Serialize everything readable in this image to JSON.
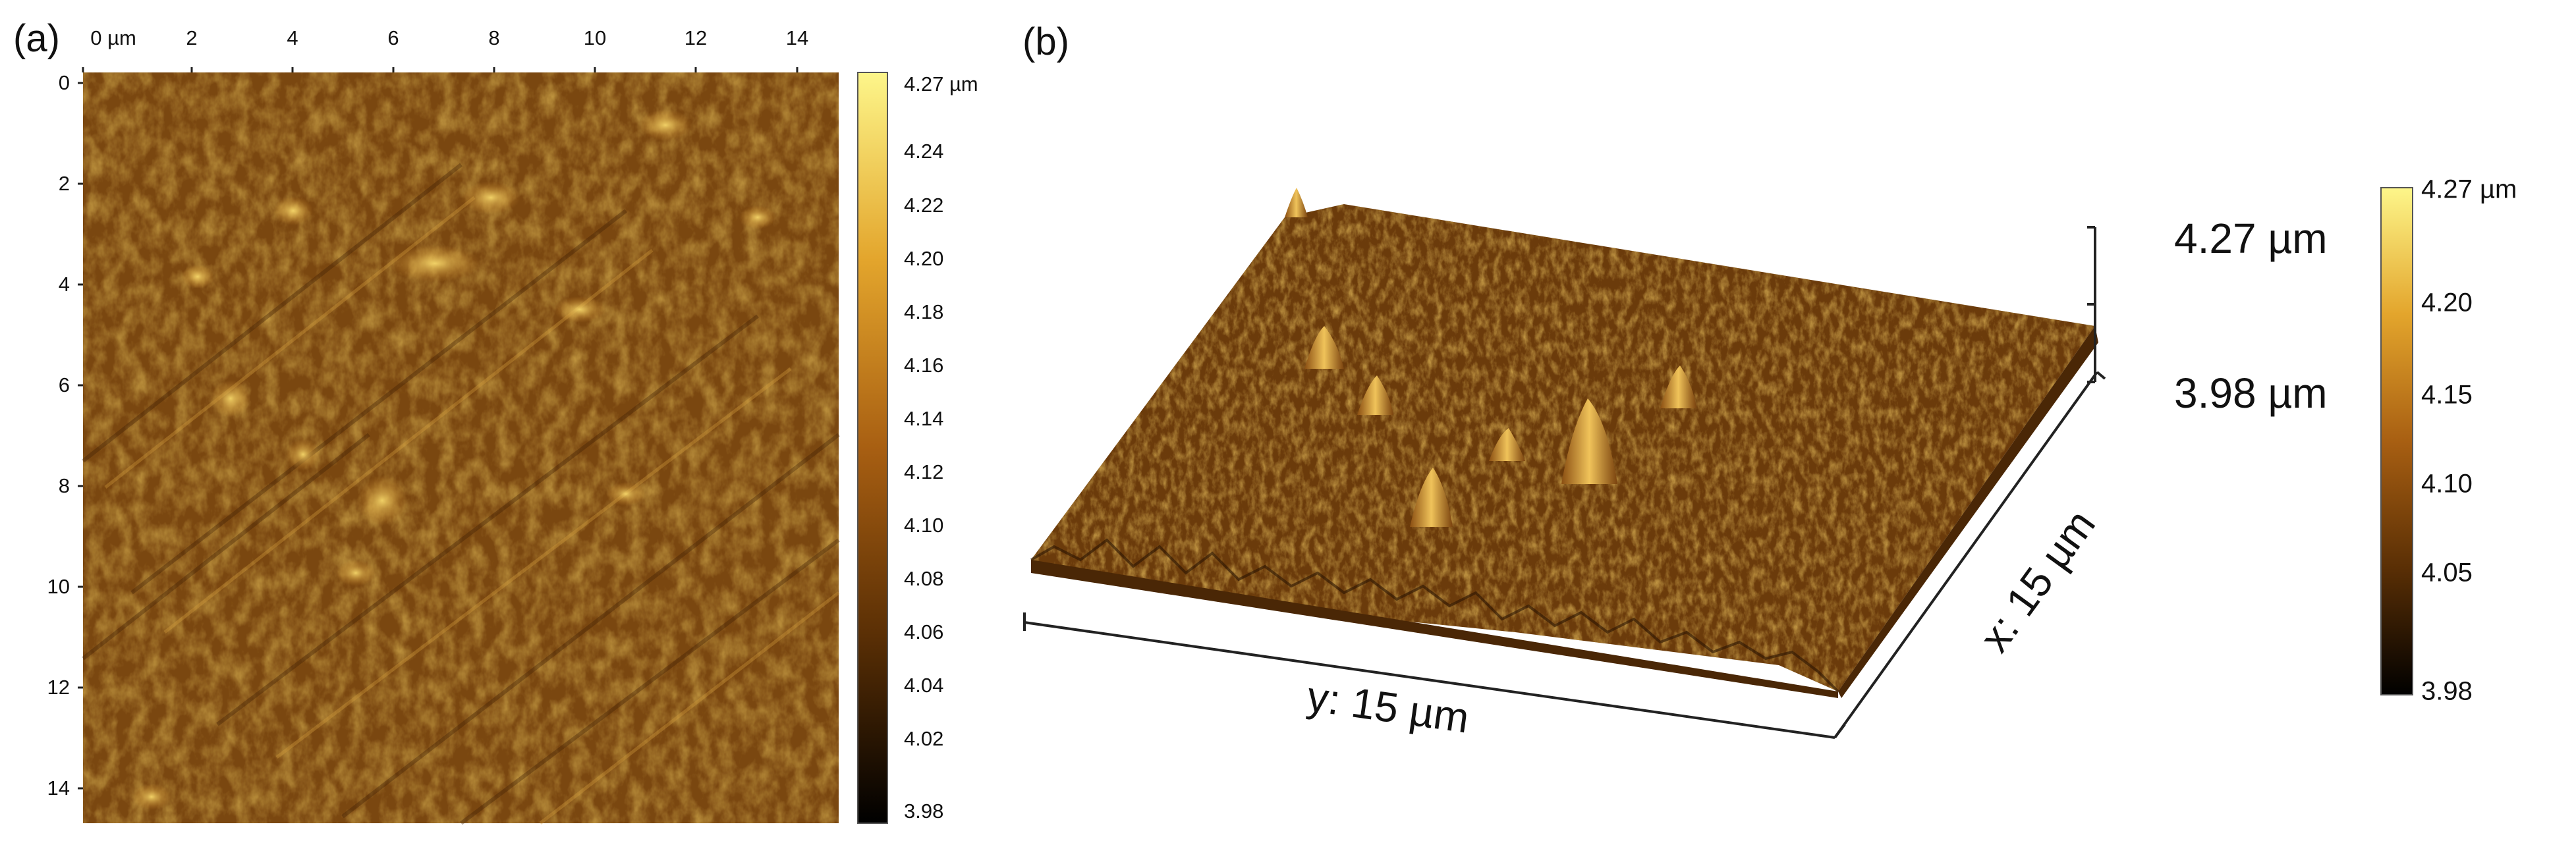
{
  "panel_a": {
    "label": "(a)",
    "x_ticks": [
      "0 µm",
      "2",
      "4",
      "6",
      "8",
      "10",
      "12",
      "14"
    ],
    "y_ticks": [
      "0",
      "2",
      "4",
      "6",
      "8",
      "10",
      "12",
      "14"
    ],
    "colorbar": {
      "ticks": [
        "4.27 µm",
        "4.24",
        "4.22",
        "4.20",
        "4.18",
        "4.16",
        "4.14",
        "4.12",
        "4.10",
        "4.08",
        "4.06",
        "4.04",
        "4.02",
        "3.98"
      ],
      "colors": [
        "#fdf68a",
        "#e3a52c",
        "#a85f12",
        "#5a2f05",
        "#000000"
      ]
    }
  },
  "panel_b": {
    "label": "(b)",
    "z_max": "4.27 µm",
    "z_min": "3.98 µm",
    "y_axis_label": "y: 15 µm",
    "x_axis_label": "x: 15 µm",
    "colorbar": {
      "ticks": [
        "4.27 µm",
        "4.20",
        "4.15",
        "4.10",
        "4.05",
        "3.98"
      ],
      "colors": [
        "#fdf68a",
        "#e3a52c",
        "#a85f12",
        "#5a2f05",
        "#000000"
      ]
    }
  }
}
